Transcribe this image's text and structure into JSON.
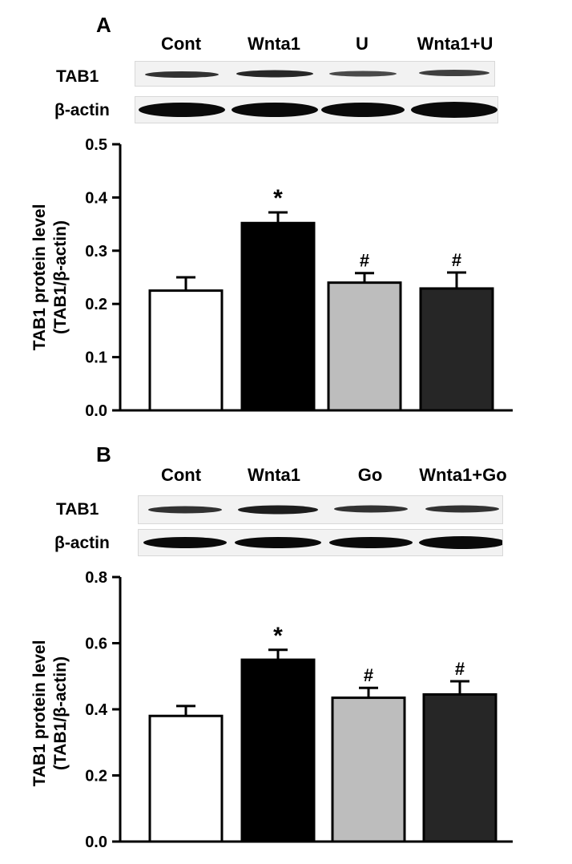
{
  "panels": [
    {
      "letter": "A",
      "lanes": [
        "Cont",
        "Wnta1",
        "U",
        "Wnta1+U"
      ],
      "blot_rows": [
        "TAB1",
        "β-actin"
      ],
      "band_intensity": {
        "TAB1": [
          0.85,
          0.9,
          0.75,
          0.8
        ],
        "beta_actin": [
          1.0,
          1.0,
          1.0,
          1.0
        ]
      }
    },
    {
      "letter": "B",
      "lanes": [
        "Cont",
        "Wnta1",
        "Go",
        "Wnta1+Go"
      ],
      "blot_rows": [
        "TAB1",
        "β-actin"
      ],
      "band_intensity": {
        "TAB1": [
          0.85,
          0.95,
          0.85,
          0.85
        ],
        "beta_actin": [
          1.0,
          1.0,
          1.0,
          1.0
        ]
      }
    }
  ],
  "chart_data": [
    {
      "type": "bar",
      "categories": [
        "Cont",
        "Wnta1",
        "U",
        "Wnta1+U"
      ],
      "values": [
        0.225,
        0.352,
        0.24,
        0.229
      ],
      "errors": [
        0.025,
        0.02,
        0.018,
        0.03
      ],
      "annotations": [
        "",
        "*",
        "#",
        "#"
      ],
      "bar_colors": [
        "#ffffff",
        "#000000",
        "#bdbdbd",
        "#262626"
      ],
      "ylabel_lines": [
        "TAB1 protein level",
        "(TAB1/β-actin)"
      ],
      "ylim": [
        0,
        0.5
      ],
      "yticks": [
        "0.0",
        "0.1",
        "0.2",
        "0.3",
        "0.4",
        "0.5"
      ],
      "ytick_values": [
        0,
        0.1,
        0.2,
        0.3,
        0.4,
        0.5
      ],
      "grid": false
    },
    {
      "type": "bar",
      "categories": [
        "Cont",
        "Wnta1",
        "Go",
        "Wnta1+Go"
      ],
      "values": [
        0.38,
        0.55,
        0.435,
        0.445
      ],
      "errors": [
        0.03,
        0.03,
        0.03,
        0.04
      ],
      "annotations": [
        "",
        "*",
        "#",
        "#"
      ],
      "bar_colors": [
        "#ffffff",
        "#000000",
        "#bdbdbd",
        "#262626"
      ],
      "ylabel_lines": [
        "TAB1 protein level",
        "(TAB1/β-actin)"
      ],
      "ylim": [
        0,
        0.8
      ],
      "yticks": [
        "0.0",
        "0.2",
        "0.4",
        "0.6",
        "0.8"
      ],
      "ytick_values": [
        0,
        0.2,
        0.4,
        0.6,
        0.8
      ],
      "grid": false
    }
  ]
}
